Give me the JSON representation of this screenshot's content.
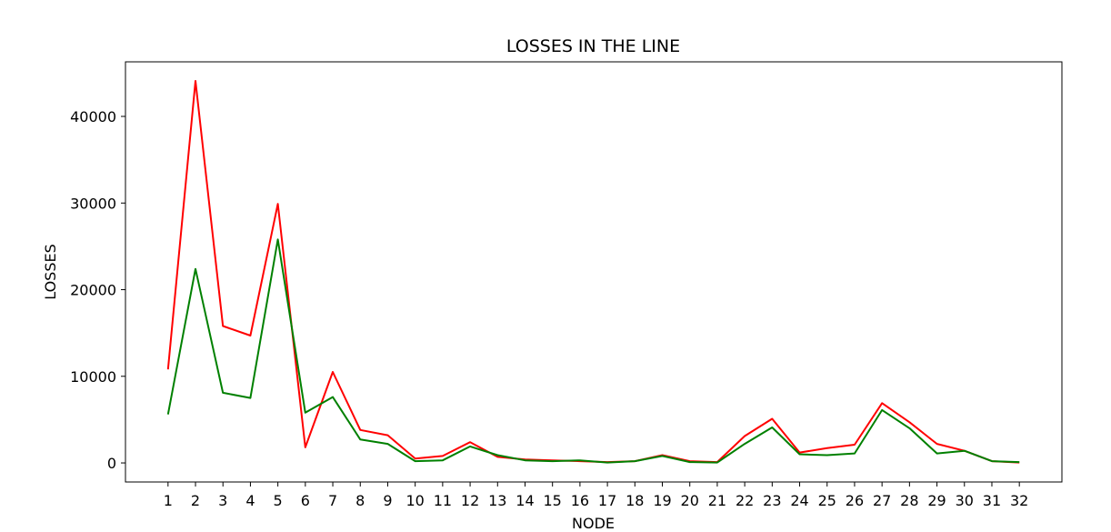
{
  "chart_data": {
    "type": "line",
    "title": "LOSSES IN THE LINE",
    "xlabel": "NODE",
    "ylabel": "LOSSES",
    "x": [
      1,
      2,
      3,
      4,
      5,
      6,
      7,
      8,
      9,
      10,
      11,
      12,
      13,
      14,
      15,
      16,
      17,
      18,
      19,
      20,
      21,
      22,
      23,
      24,
      25,
      26,
      27,
      28,
      29,
      30,
      31,
      32
    ],
    "xticks": [
      "1",
      "2",
      "3",
      "4",
      "5",
      "6",
      "7",
      "8",
      "9",
      "10",
      "11",
      "12",
      "13",
      "14",
      "15",
      "16",
      "17",
      "18",
      "19",
      "20",
      "21",
      "22",
      "23",
      "24",
      "25",
      "26",
      "27",
      "28",
      "29",
      "30",
      "31",
      "32"
    ],
    "xlim": [
      -0.55,
      33.55
    ],
    "ylim": [
      -2200,
      46300
    ],
    "yticks": [
      0,
      10000,
      20000,
      30000,
      40000
    ],
    "ytick_labels": [
      "0",
      "10000",
      "20000",
      "30000",
      "40000"
    ],
    "grid": false,
    "series": [
      {
        "color": "#ff0000",
        "values": [
          10800,
          44100,
          15800,
          14700,
          29900,
          1800,
          10500,
          3800,
          3200,
          500,
          800,
          2400,
          700,
          400,
          300,
          200,
          100,
          200,
          900,
          200,
          100,
          3100,
          5100,
          1200,
          1700,
          2100,
          6900,
          4700,
          2200,
          1400,
          200,
          50
        ]
      },
      {
        "color": "#008000",
        "values": [
          5600,
          22400,
          8100,
          7500,
          25800,
          5800,
          7600,
          2700,
          2200,
          200,
          300,
          1900,
          900,
          300,
          200,
          300,
          50,
          200,
          800,
          100,
          50,
          2200,
          4100,
          1000,
          900,
          1100,
          6100,
          4000,
          1100,
          1400,
          200,
          100
        ]
      }
    ]
  }
}
